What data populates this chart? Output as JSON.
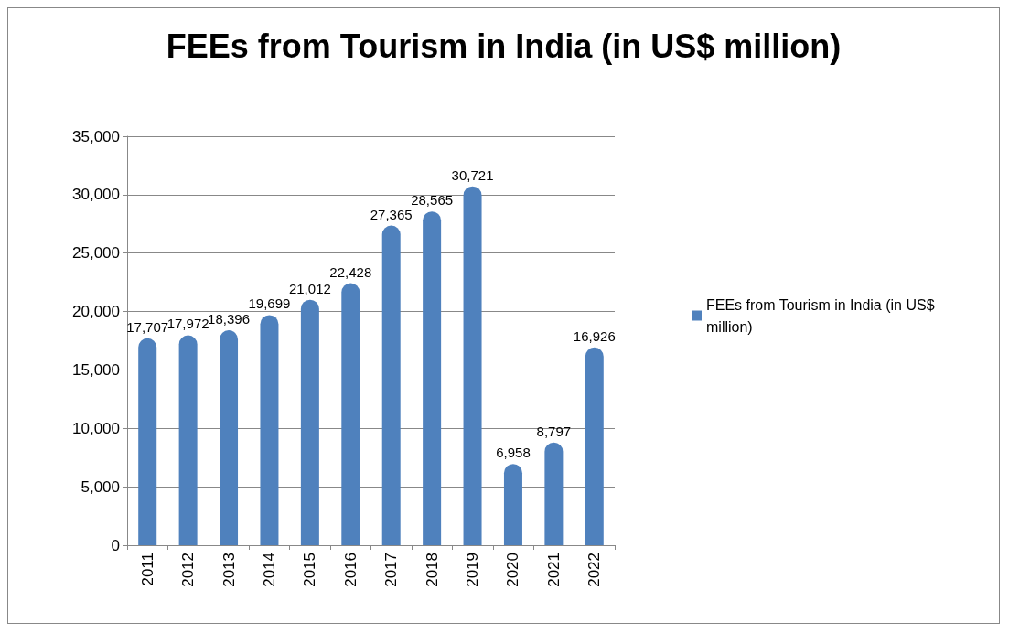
{
  "chart_data": {
    "type": "bar",
    "title": "FEEs from Tourism in India (in US$ million)",
    "categories": [
      "2011",
      "2012",
      "2013",
      "2014",
      "2015",
      "2016",
      "2017",
      "2018",
      "2019",
      "2020",
      "2021",
      "2022"
    ],
    "series": [
      {
        "name": "FEEs from Tourism in India (in US$ million)",
        "color": "#4f81bd",
        "values": [
          17707,
          17972,
          18396,
          19699,
          21012,
          22428,
          27365,
          28565,
          30721,
          6958,
          8797,
          16926
        ],
        "value_labels": [
          "17,707",
          "17,972",
          "18,396",
          "19,699",
          "21,012",
          "22,428",
          "27,365",
          "28,565",
          "30,721",
          "6,958",
          "8,797",
          "16,926"
        ]
      }
    ],
    "ylim": [
      0,
      35000
    ],
    "yticks": [
      0,
      {
        "value": 5000,
        "label": "5,000"
      },
      {
        "value": 10000,
        "label": "10,000"
      },
      {
        "value": 15000,
        "label": "15,000"
      },
      {
        "value": 20000,
        "label": "20,000"
      },
      {
        "value": 25000,
        "label": "25,000"
      },
      {
        "value": 30000,
        "label": "30,000"
      },
      {
        "value": 35000,
        "label": "35,000"
      }
    ],
    "grid": "y",
    "legend": "right"
  }
}
